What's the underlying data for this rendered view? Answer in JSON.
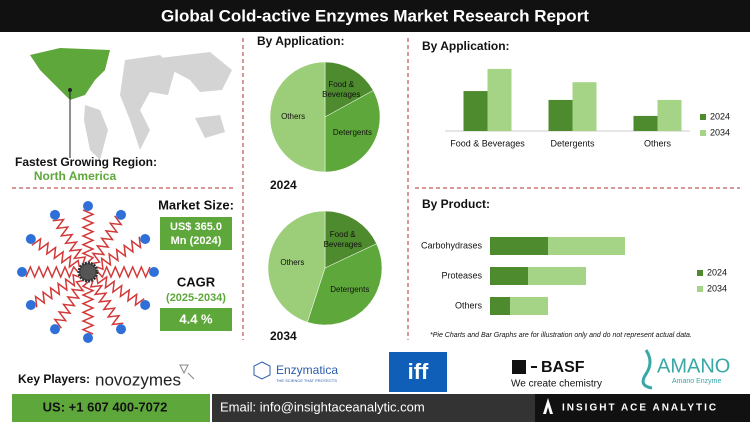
{
  "header": {
    "title": "Global Cold-active Enzymes Market Research Report"
  },
  "region": {
    "label": "Fastest Growing Region:",
    "value": "North America"
  },
  "market_size": {
    "label": "Market Size:",
    "value": "US$ 365.0 Mn (2024)"
  },
  "cagr": {
    "label": "CAGR",
    "period": "(2025-2034)",
    "value": "4.4 %"
  },
  "chart_data": [
    {
      "type": "pie",
      "title": "By Application:",
      "label": "2024",
      "categories": [
        "Food & Beverages",
        "Detergents",
        "Others"
      ],
      "values": [
        17,
        33,
        50
      ],
      "colors": [
        "#4e8a2e",
        "#5ea83b",
        "#9ccd78"
      ]
    },
    {
      "type": "pie",
      "label": "2034",
      "categories": [
        "Food & Beverages",
        "Detergents",
        "Others"
      ],
      "values": [
        18,
        37,
        45
      ],
      "colors": [
        "#4e8a2e",
        "#5ea83b",
        "#9ccd78"
      ]
    },
    {
      "type": "bar",
      "title": "By Application:",
      "categories": [
        "Food & Beverages",
        "Detergents",
        "Others"
      ],
      "series": [
        {
          "name": "2024",
          "color": "#4e8a2e",
          "values": [
            45,
            35,
            17
          ]
        },
        {
          "name": "2034",
          "color": "#a6d487",
          "values": [
            70,
            55,
            35
          ]
        }
      ],
      "ylim": [
        0,
        80
      ]
    },
    {
      "type": "bar",
      "orientation": "horizontal",
      "stacked": true,
      "title": "By Product:",
      "categories": [
        "Carbohydrases",
        "Proteases",
        "Others"
      ],
      "series": [
        {
          "name": "2024",
          "color": "#4e8a2e",
          "values": [
            58,
            38,
            20
          ]
        },
        {
          "name": "2034",
          "color": "#a6d487",
          "values": [
            77,
            58,
            38
          ]
        }
      ],
      "xlim": [
        0,
        150
      ]
    }
  ],
  "footnote": "*Pie Charts and Bar Graphs are for illustration only and do not represent actual data.",
  "key_players": {
    "label": "Key Players:",
    "companies": [
      {
        "name": "novozymes"
      },
      {
        "name": "Enzymatica",
        "tagline": "THE SCIENCE THAT PROTECTS"
      },
      {
        "name": "iff"
      },
      {
        "name": "BASF",
        "tagline": "We create chemistry"
      },
      {
        "name": "AMANO",
        "tagline": "Amano Enzyme"
      }
    ]
  },
  "footer": {
    "phone": "US: +1 607 400-7072",
    "email": "Email: info@insightaceanalytic.com",
    "brand": "INSIGHT ACE ANALYTIC"
  }
}
